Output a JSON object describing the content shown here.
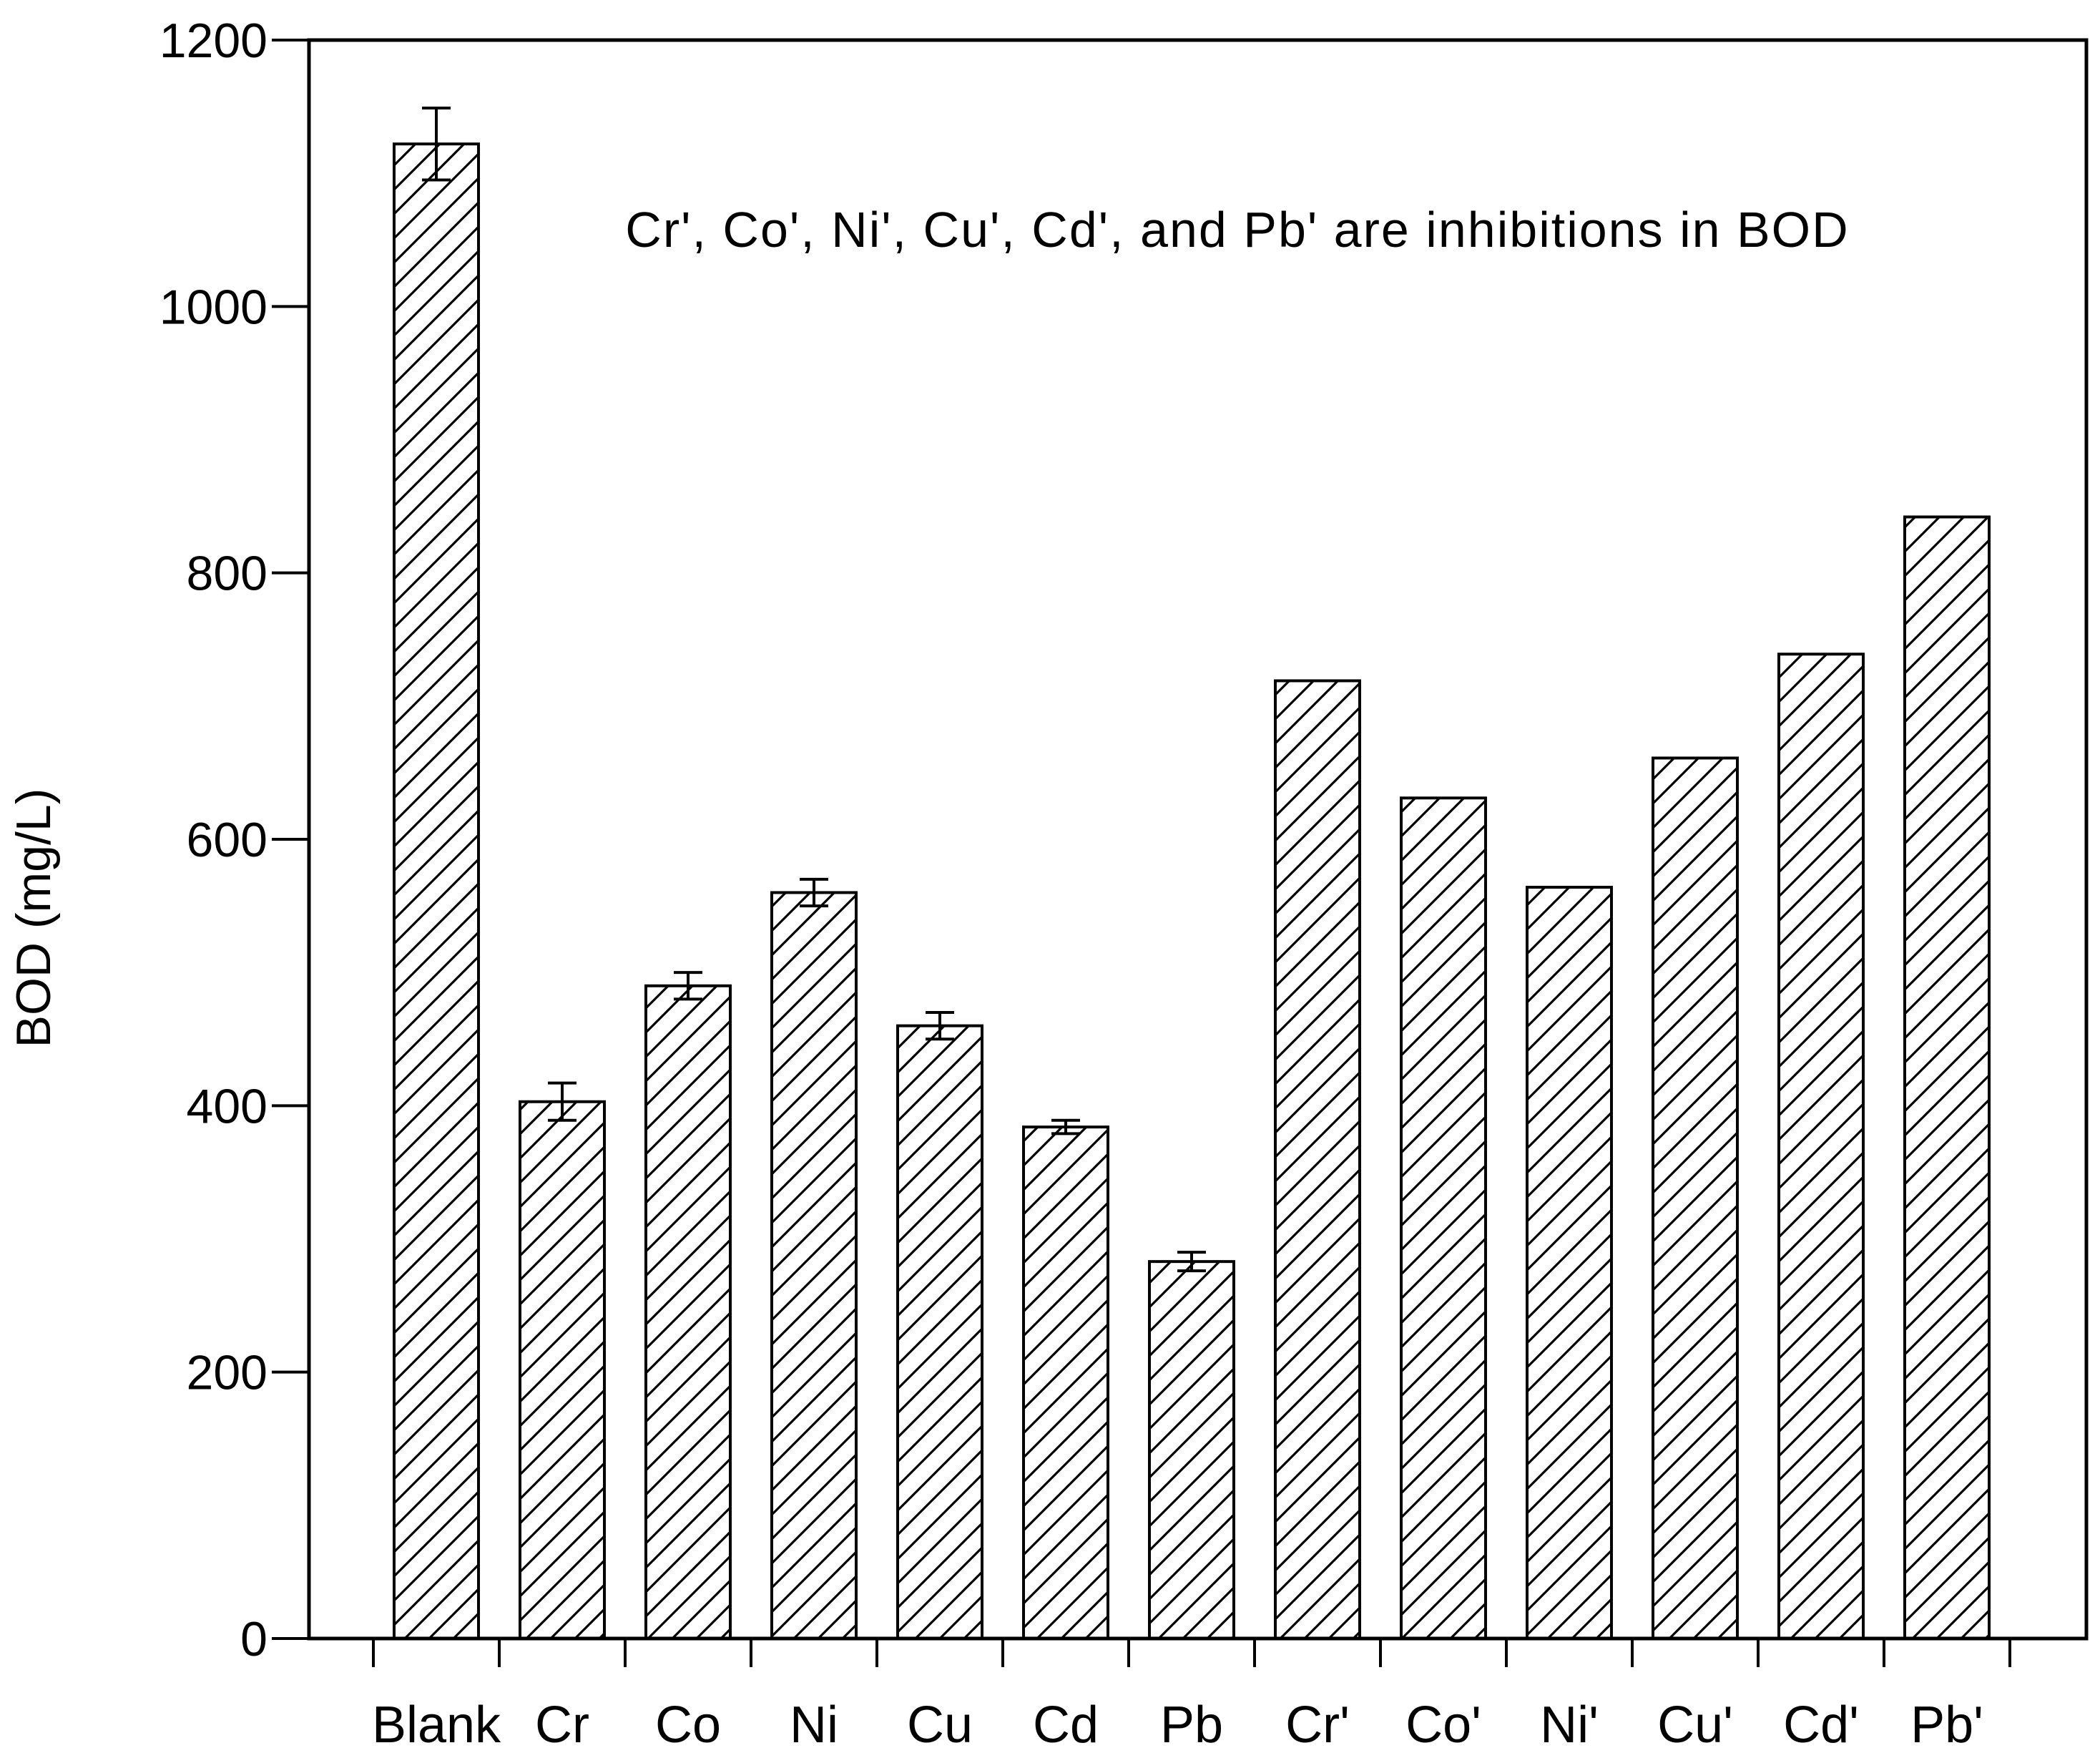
{
  "chart_data": {
    "type": "bar",
    "title": "",
    "xlabel": "",
    "ylabel": "BOD (mg/L)",
    "ylim": [
      0,
      1200
    ],
    "yticks": [
      0,
      200,
      400,
      600,
      800,
      1000,
      1200
    ],
    "categories": [
      "Blank",
      "Cr",
      "Co",
      "Ni",
      "Cu",
      "Cd",
      "Pb",
      "Cr'",
      "Co'",
      "Ni'",
      "Cu'",
      "Cd'",
      "Pb'"
    ],
    "values": [
      1122,
      403,
      490,
      560,
      460,
      384,
      283,
      719,
      631,
      564,
      661,
      739,
      842
    ],
    "error": [
      27,
      14,
      10,
      10,
      10,
      5,
      7,
      null,
      null,
      null,
      null,
      null,
      null
    ],
    "annotation": "Cr', Co', Ni', Cu', Cd', and Pb' are inhibitions in BOD",
    "grid": false,
    "legend": "none",
    "bar_fill": "diagonal-hatch",
    "colors": {
      "line": "#000000",
      "background": "#ffffff"
    }
  }
}
